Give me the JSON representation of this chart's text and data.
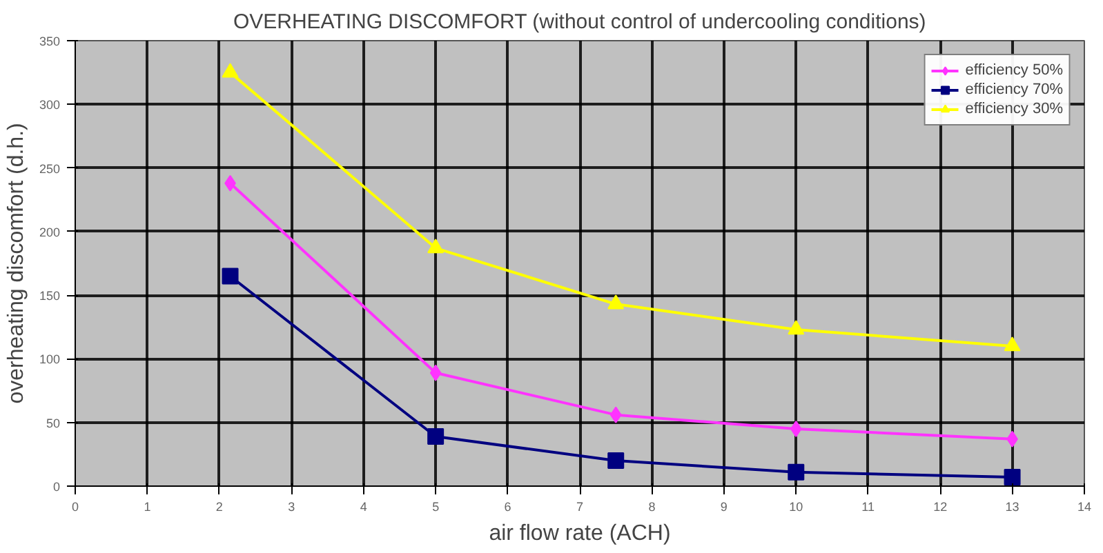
{
  "chart_data": {
    "type": "line",
    "title": "OVERHEATING DISCOMFORT (without control of undercooling conditions)",
    "xlabel": "air flow rate (ACH)",
    "ylabel": "overheating discomfort (d.h.)",
    "x": [
      2.15,
      5,
      7.5,
      10,
      13
    ],
    "series": [
      {
        "name": "efficiency 50%",
        "color": "#ff33ff",
        "marker": "diamond",
        "values": [
          238,
          89,
          56,
          45,
          37
        ]
      },
      {
        "name": "efficiency 70%",
        "color": "#000080",
        "marker": "square",
        "values": [
          165,
          39,
          20,
          11,
          7
        ]
      },
      {
        "name": "efficiency 30%",
        "color": "#ffff00",
        "marker": "triangle",
        "values": [
          325,
          187,
          143,
          123,
          110
        ]
      }
    ],
    "xlim": [
      0,
      14
    ],
    "xticks": [
      0,
      1,
      2,
      3,
      4,
      5,
      6,
      7,
      8,
      9,
      10,
      11,
      12,
      13,
      14
    ],
    "ylim": [
      0,
      350
    ],
    "yticks": [
      0,
      50,
      100,
      150,
      200,
      250,
      300,
      350
    ],
    "grid": true,
    "legend": "top right"
  }
}
